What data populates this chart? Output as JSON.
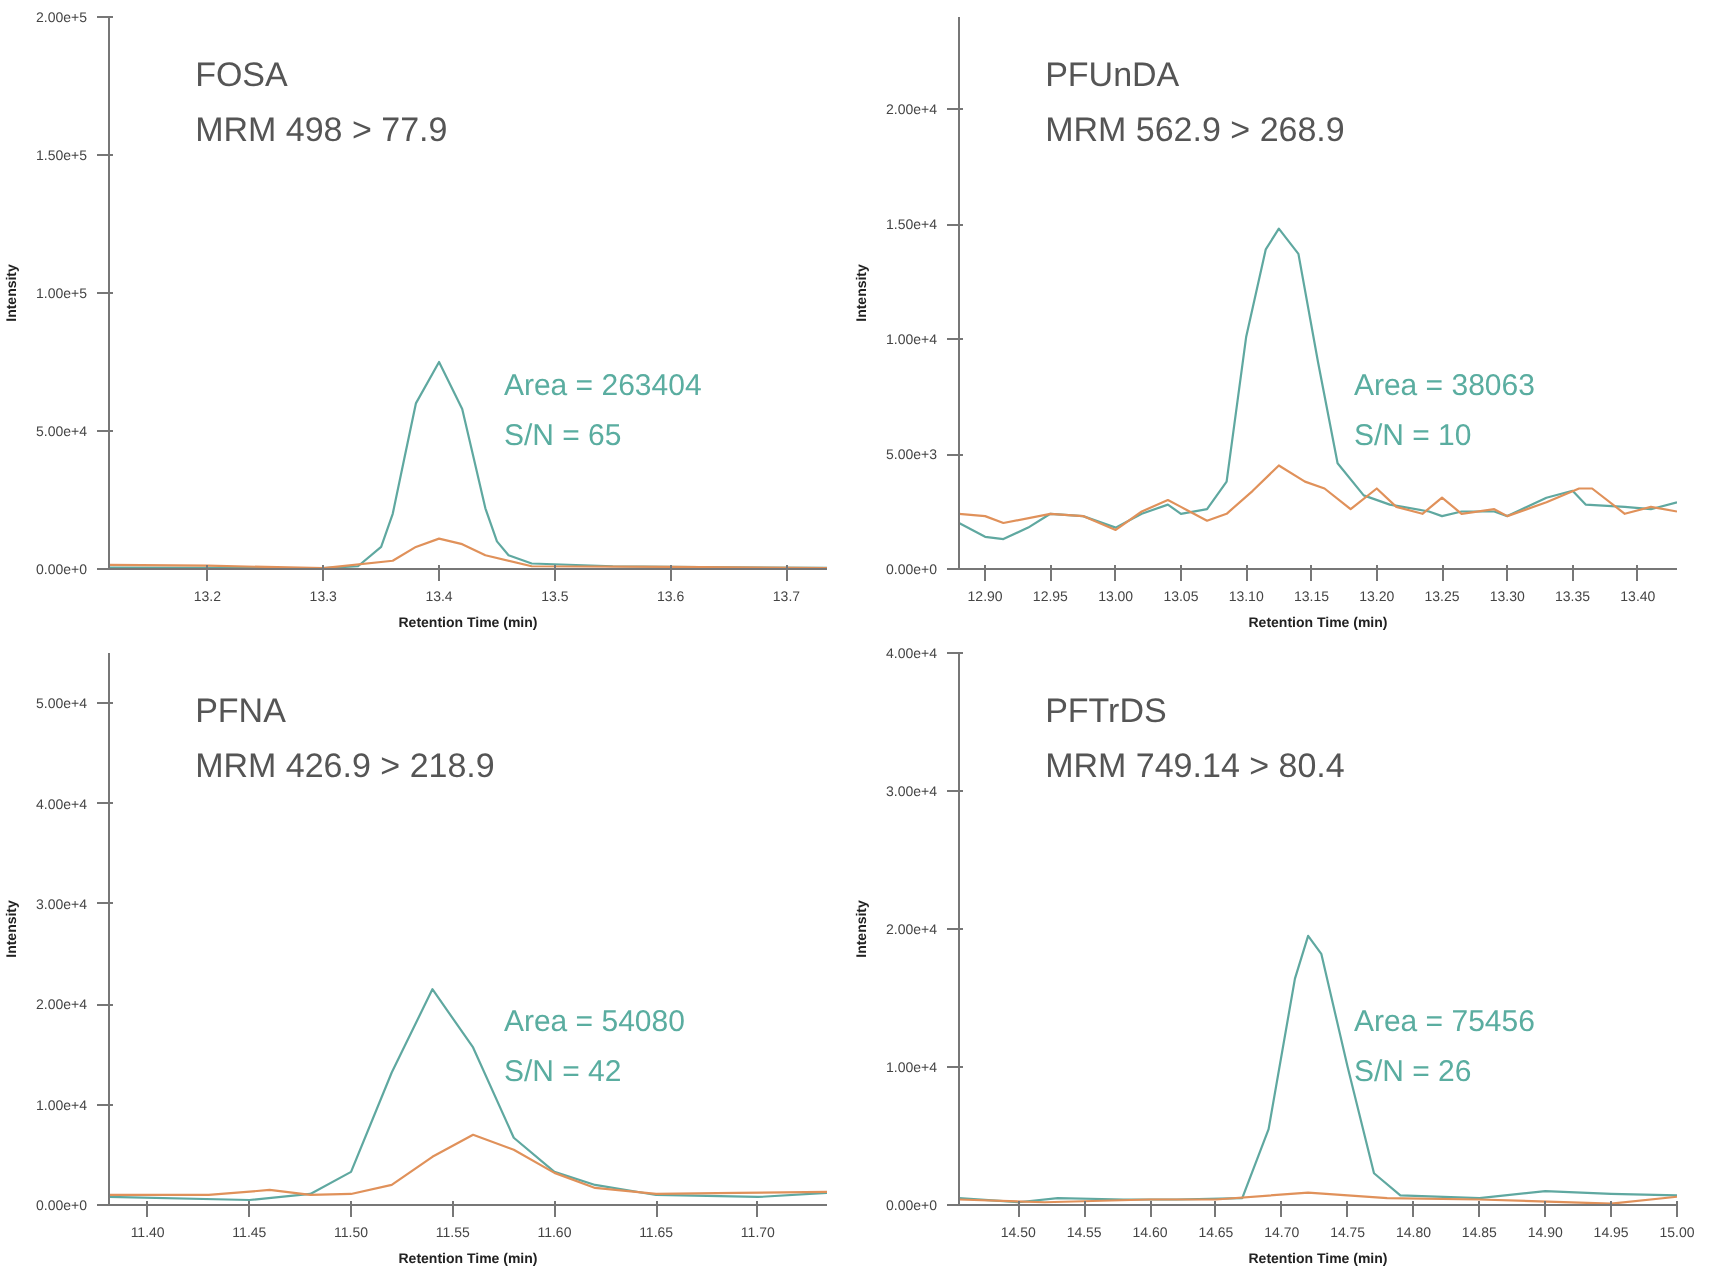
{
  "chart_data": [
    {
      "type": "line",
      "title": "FOSA",
      "subtitle": "MRM 498 > 77.9",
      "xlabel": "Retention Time (min)",
      "ylabel": "Intensity",
      "xlim": [
        13.115,
        13.735
      ],
      "ylim": [
        0,
        200000
      ],
      "xticks": [
        13.2,
        13.3,
        13.4,
        13.5,
        13.6,
        13.7
      ],
      "yticks": [
        {
          "value": 0,
          "label": "0.00e+0"
        },
        {
          "value": 50000,
          "label": "5.00e+4"
        },
        {
          "value": 100000,
          "label": "1.00e+5"
        },
        {
          "value": 150000,
          "label": "1.50e+5"
        },
        {
          "value": 200000,
          "label": "2.00e+5"
        }
      ],
      "line_style": "solid",
      "annotations": [
        "Area = 263404",
        "S/N = 65"
      ],
      "series": [
        {
          "color": "#5fa8a0",
          "x": [
            13.115,
            13.2,
            13.3,
            13.33,
            13.35,
            13.36,
            13.37,
            13.38,
            13.4,
            13.42,
            13.43,
            13.44,
            13.45,
            13.46,
            13.48,
            13.55,
            13.65,
            13.735
          ],
          "values": [
            500,
            400,
            300,
            1000,
            8000,
            20000,
            40000,
            60000,
            75000,
            58000,
            40000,
            22000,
            10000,
            5000,
            2000,
            1000,
            600,
            400
          ]
        },
        {
          "color": "#e0915a",
          "x": [
            13.115,
            13.2,
            13.3,
            13.36,
            13.38,
            13.4,
            13.42,
            13.44,
            13.48,
            13.6,
            13.735
          ],
          "values": [
            1500,
            1200,
            300,
            3000,
            8000,
            11000,
            9000,
            5000,
            1000,
            800,
            300
          ]
        }
      ]
    },
    {
      "type": "line",
      "title": "PFUnDA",
      "subtitle": "MRM 562.9 > 268.9",
      "xlabel": "Retention Time (min)",
      "ylabel": "Intensity",
      "xlim": [
        12.88,
        13.43
      ],
      "ylim": [
        0,
        24000
      ],
      "xticks": [
        {
          "value": 12.9,
          "label": "12.90"
        },
        {
          "value": 12.95,
          "label": "12.95"
        },
        {
          "value": 13.0,
          "label": "13.00"
        },
        {
          "value": 13.05,
          "label": "13.05"
        },
        {
          "value": 13.1,
          "label": "13.10"
        },
        {
          "value": 13.15,
          "label": "13.15"
        },
        {
          "value": 13.2,
          "label": "13.20"
        },
        {
          "value": 13.25,
          "label": "13.25"
        },
        {
          "value": 13.3,
          "label": "13.30"
        },
        {
          "value": 13.35,
          "label": "13.35"
        },
        {
          "value": 13.4,
          "label": "13.40"
        }
      ],
      "yticks": [
        {
          "value": 0,
          "label": "0.00e+0"
        },
        {
          "value": 5000,
          "label": "5.00e+3"
        },
        {
          "value": 10000,
          "label": "1.00e+4"
        },
        {
          "value": 15000,
          "label": "1.50e+4"
        },
        {
          "value": 20000,
          "label": "2.00e+4"
        }
      ],
      "line_style": "solid",
      "annotations": [
        "Area = 38063",
        "S/N = 10"
      ],
      "series": [
        {
          "color": "#5fa8a0",
          "x": [
            12.88,
            12.9,
            12.914,
            12.933,
            12.95,
            12.975,
            13.0,
            13.02,
            13.04,
            13.05,
            13.07,
            13.085,
            13.1,
            13.115,
            13.125,
            13.14,
            13.155,
            13.17,
            13.19,
            13.21,
            13.22,
            13.24,
            13.25,
            13.265,
            13.29,
            13.3,
            13.33,
            13.35,
            13.36,
            13.39,
            13.41,
            13.43
          ],
          "values": [
            2000,
            1400,
            1300,
            1800,
            2400,
            2300,
            1800,
            2400,
            2800,
            2400,
            2600,
            3800,
            10100,
            13900,
            14800,
            13700,
            9000,
            4600,
            3200,
            2800,
            2700,
            2500,
            2300,
            2500,
            2500,
            2300,
            3100,
            3400,
            2800,
            2700,
            2600,
            2900
          ]
        },
        {
          "color": "#e0915a",
          "x": [
            12.88,
            12.9,
            12.914,
            12.95,
            12.975,
            13.0,
            13.02,
            13.04,
            13.05,
            13.07,
            13.085,
            13.105,
            13.125,
            13.145,
            13.16,
            13.18,
            13.2,
            13.215,
            13.235,
            13.25,
            13.265,
            13.29,
            13.3,
            13.33,
            13.355,
            13.365,
            13.39,
            13.41,
            13.43
          ],
          "values": [
            2400,
            2300,
            2000,
            2400,
            2300,
            1700,
            2500,
            3000,
            2700,
            2100,
            2400,
            3400,
            4500,
            3800,
            3500,
            2600,
            3500,
            2700,
            2400,
            3100,
            2400,
            2600,
            2300,
            2900,
            3500,
            3500,
            2400,
            2700,
            2500
          ]
        }
      ]
    },
    {
      "type": "line",
      "title": "PFNA",
      "subtitle": "MRM 426.9 > 218.9",
      "xlabel": "Retention Time (min)",
      "ylabel": "Intensity",
      "xlim": [
        11.381,
        11.734
      ],
      "ylim": [
        0,
        55000
      ],
      "xticks": [
        {
          "value": 11.4,
          "label": "11.40"
        },
        {
          "value": 11.45,
          "label": "11.45"
        },
        {
          "value": 11.5,
          "label": "11.50"
        },
        {
          "value": 11.55,
          "label": "11.55"
        },
        {
          "value": 11.6,
          "label": "11.60"
        },
        {
          "value": 11.65,
          "label": "11.65"
        },
        {
          "value": 11.7,
          "label": "11.70"
        }
      ],
      "yticks": [
        {
          "value": 0,
          "label": "0.00e+0"
        },
        {
          "value": 10000,
          "label": "1.00e+4"
        },
        {
          "value": 20000,
          "label": "2.00e+4"
        },
        {
          "value": 30000,
          "label": "3.00e+4"
        },
        {
          "value": 40000,
          "label": "4.00e+4"
        },
        {
          "value": 50000,
          "label": "5.00e+4"
        }
      ],
      "line_style": "solid",
      "annotations": [
        "Area = 54080",
        "S/N = 42"
      ],
      "series": [
        {
          "color": "#5fa8a0",
          "x": [
            11.381,
            11.45,
            11.48,
            11.5,
            11.52,
            11.54,
            11.56,
            11.58,
            11.6,
            11.62,
            11.65,
            11.7,
            11.734
          ],
          "values": [
            800,
            500,
            1100,
            3300,
            13200,
            21500,
            15700,
            6700,
            3300,
            2000,
            1000,
            800,
            1200
          ]
        },
        {
          "color": "#e0915a",
          "x": [
            11.381,
            11.43,
            11.46,
            11.48,
            11.5,
            11.52,
            11.54,
            11.56,
            11.58,
            11.6,
            11.62,
            11.65,
            11.69,
            11.734
          ],
          "values": [
            1000,
            1000,
            1500,
            1000,
            1100,
            2000,
            4800,
            7000,
            5500,
            3200,
            1700,
            1100,
            1200,
            1300
          ]
        }
      ]
    },
    {
      "type": "line",
      "title": "PFTrDS",
      "subtitle": "MRM 749.14 > 80.4",
      "xlabel": "Retention Time (min)",
      "ylabel": "Intensity",
      "xlim": [
        14.455,
        15.0
      ],
      "ylim": [
        0,
        40000
      ],
      "xticks": [
        {
          "value": 14.5,
          "label": "14.50"
        },
        {
          "value": 14.55,
          "label": "14.55"
        },
        {
          "value": 14.6,
          "label": "14.60"
        },
        {
          "value": 14.65,
          "label": "14.65"
        },
        {
          "value": 14.7,
          "label": "14.70"
        },
        {
          "value": 14.75,
          "label": "14.75"
        },
        {
          "value": 14.8,
          "label": "14.80"
        },
        {
          "value": 14.85,
          "label": "14.85"
        },
        {
          "value": 14.9,
          "label": "14.90"
        },
        {
          "value": 14.95,
          "label": "14.95"
        },
        {
          "value": 15.0,
          "label": "15.00"
        }
      ],
      "yticks": [
        {
          "value": 0,
          "label": "0.00e+0"
        },
        {
          "value": 10000,
          "label": "1.00e+4"
        },
        {
          "value": 20000,
          "label": "2.00e+4"
        },
        {
          "value": 30000,
          "label": "3.00e+4"
        },
        {
          "value": 40000,
          "label": "4.00e+4"
        }
      ],
      "line_style": "solid",
      "annotations": [
        "Area = 75456",
        "S/N = 26"
      ],
      "series": [
        {
          "color": "#5fa8a0",
          "x": [
            14.455,
            14.5,
            14.53,
            14.58,
            14.62,
            14.67,
            14.69,
            14.71,
            14.72,
            14.73,
            14.75,
            14.77,
            14.79,
            14.85,
            14.9,
            14.95,
            15.0
          ],
          "values": [
            500,
            200,
            500,
            400,
            400,
            500,
            5500,
            16400,
            19500,
            18200,
            10000,
            2300,
            700,
            500,
            1000,
            800,
            700
          ]
        },
        {
          "color": "#e0915a",
          "x": [
            14.455,
            14.52,
            14.6,
            14.65,
            14.72,
            14.78,
            14.85,
            14.95,
            15.0
          ],
          "values": [
            400,
            200,
            400,
            400,
            900,
            500,
            400,
            100,
            600
          ]
        }
      ]
    }
  ]
}
